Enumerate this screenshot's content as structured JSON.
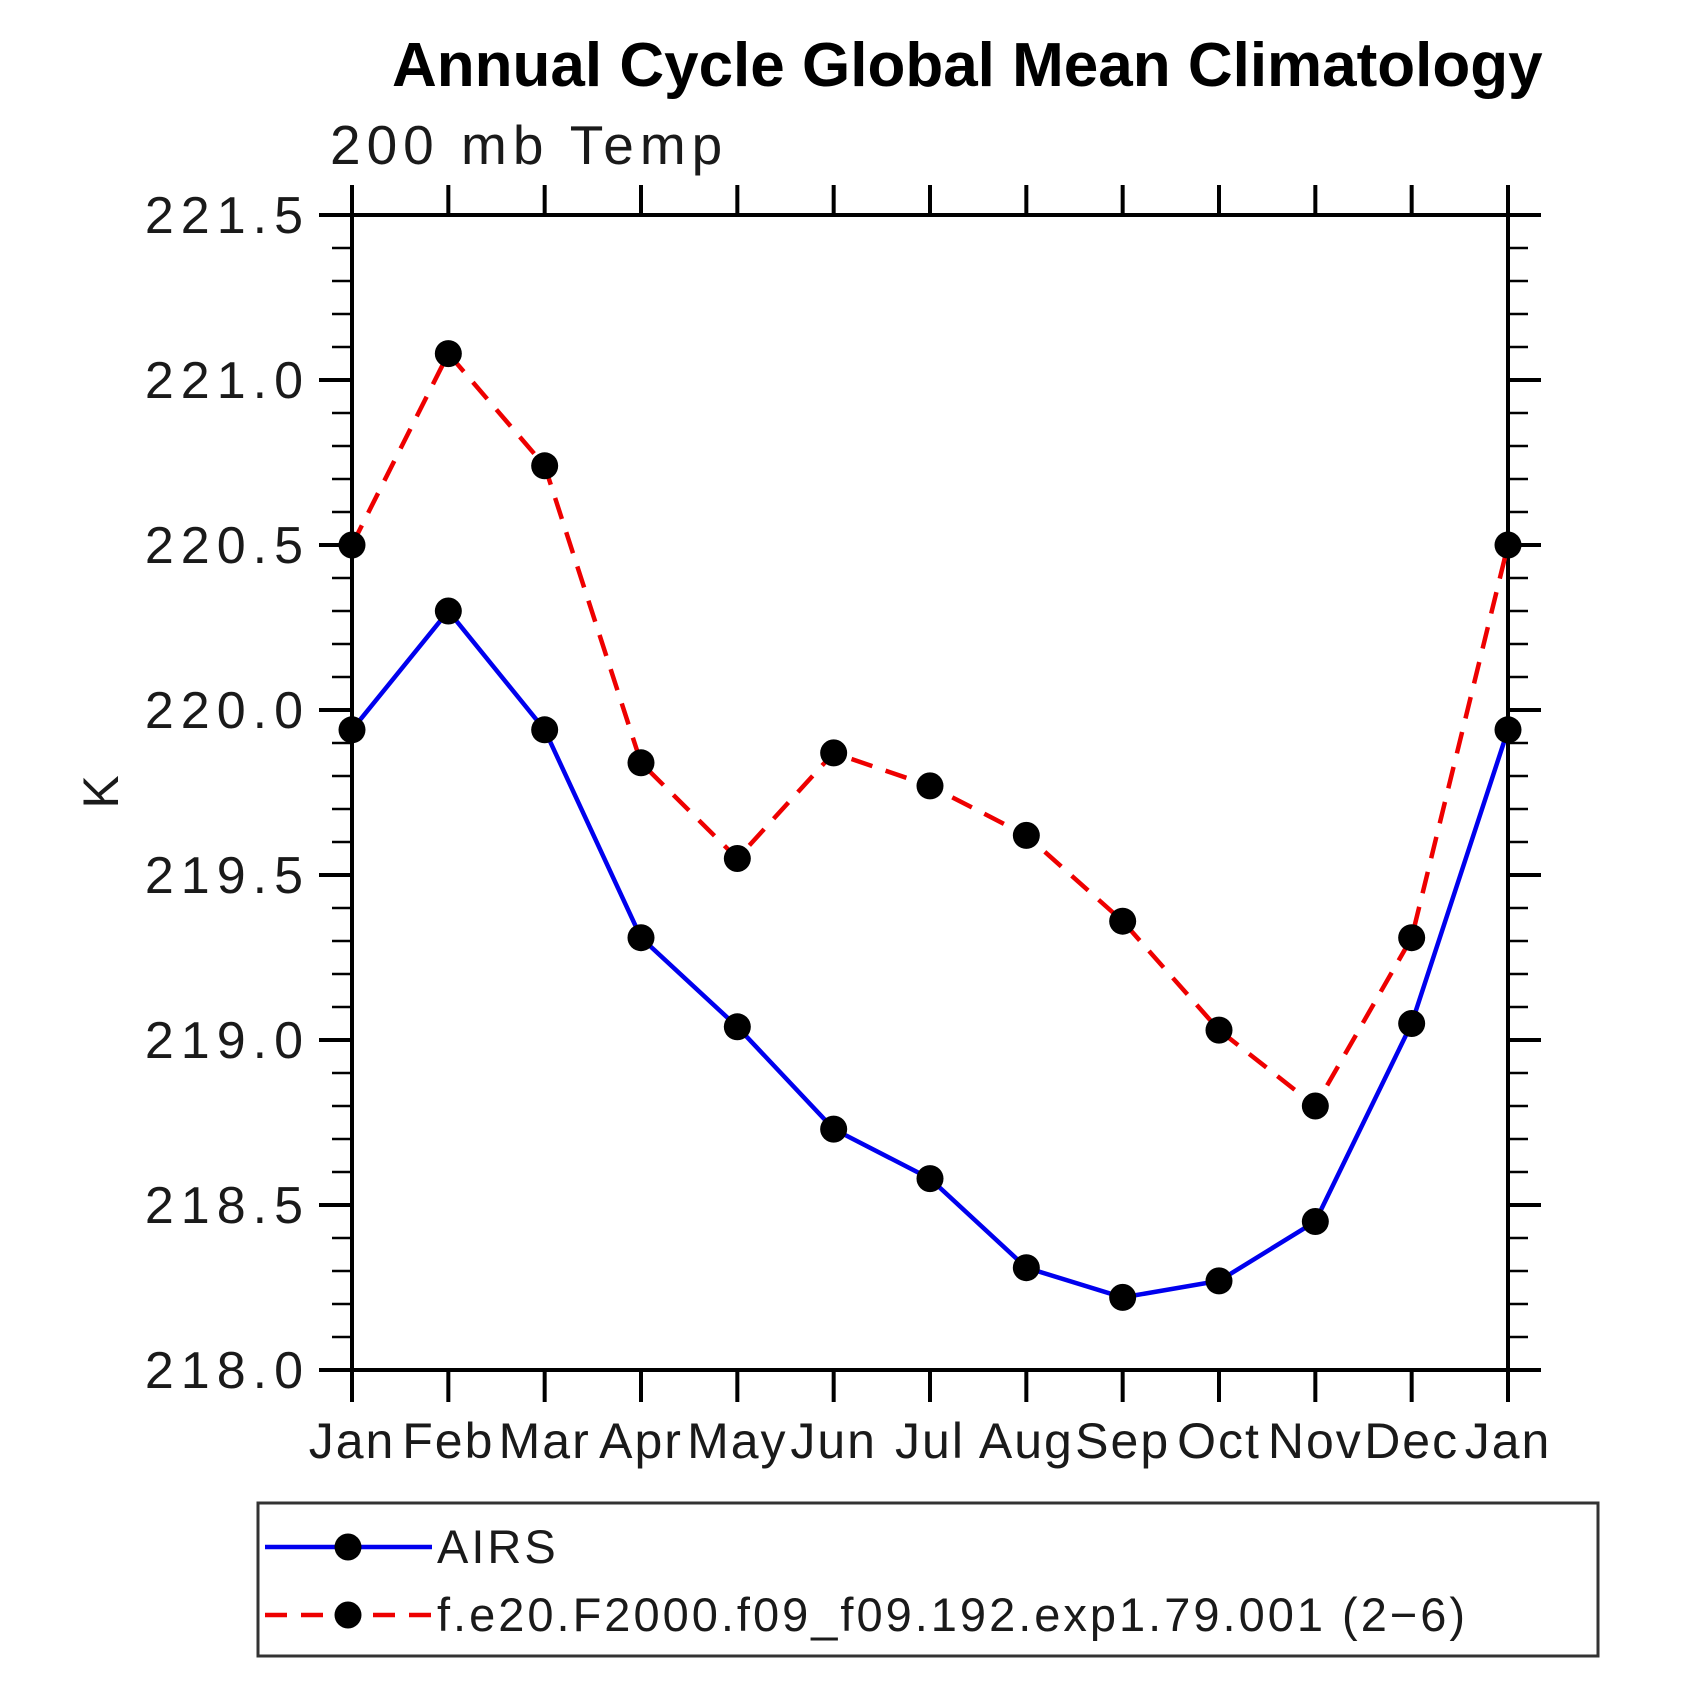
{
  "chart_data": {
    "type": "line",
    "title": "Annual Cycle Global Mean Climatology",
    "subtitle": "200 mb Temp",
    "ylabel": "K",
    "categories": [
      "Jan",
      "Feb",
      "Mar",
      "Apr",
      "May",
      "Jun",
      "Jul",
      "Aug",
      "Sep",
      "Oct",
      "Nov",
      "Dec",
      "Jan"
    ],
    "ylim": [
      218.0,
      221.5
    ],
    "ytick_step": 0.5,
    "yminor_step": 0.1,
    "ytick_labels": [
      "218.0",
      "218.5",
      "219.0",
      "219.5",
      "220.0",
      "220.5",
      "221.0",
      "221.5"
    ],
    "grid": false,
    "legend_position": "bottom-left",
    "axis_color": "#000000",
    "marker_color": "#000000",
    "series": [
      {
        "name": "AIRS",
        "line_color": "#0000ee",
        "line_style": "solid",
        "marker": "filled-circle",
        "values": [
          219.94,
          220.3,
          219.94,
          219.31,
          219.04,
          218.73,
          218.58,
          218.31,
          218.22,
          218.27,
          218.45,
          219.05,
          219.94
        ]
      },
      {
        "name": "f.e20.F2000.f09_f09.192.exp1.79.001 (2−6)",
        "line_color": "#ee0000",
        "line_style": "dashed",
        "marker": "filled-circle",
        "values": [
          220.5,
          221.08,
          220.74,
          219.84,
          219.55,
          219.87,
          219.77,
          219.62,
          219.36,
          219.03,
          218.8,
          219.31,
          220.5
        ]
      }
    ]
  }
}
